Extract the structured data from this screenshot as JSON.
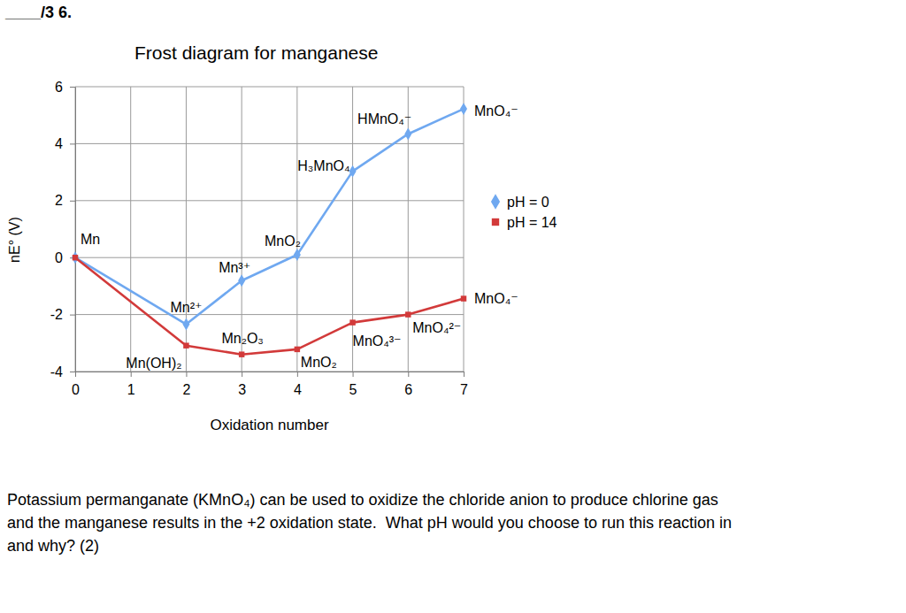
{
  "header": "____/3 6.",
  "question": [
    "Potassium permanganate (KMnO₄) can be used to oxidize the chloride anion to produce chlorine gas",
    "and the manganese results in the +2 oxidation state.  What pH would you choose to run this reaction in",
    "and why? (2)"
  ],
  "chart_data": {
    "type": "line",
    "title": "Frost diagram for manganese",
    "x_label": "Oxidation number",
    "y_label": "nE° (V)",
    "xlim": [
      0,
      7
    ],
    "xticks": [
      0,
      1,
      2,
      3,
      4,
      5,
      6,
      7
    ],
    "ylim": [
      -4,
      6
    ],
    "yticks": [
      -4,
      -2,
      0,
      2,
      4,
      6
    ],
    "grid": true,
    "legend": "right",
    "series": [
      {
        "name": "pH = 0",
        "color": "#6fa8f0",
        "marker": "diamond",
        "x": [
          0,
          2,
          3,
          4,
          5,
          6,
          7
        ],
        "values": [
          0,
          -2.34,
          -0.81,
          0.1,
          3.03,
          4.34,
          5.22
        ],
        "point_labels": [
          "Mn",
          "Mn²⁺",
          "Mn³⁺",
          "MnO₂",
          "H₃MnO₄",
          "HMnO₄⁻",
          "MnO₄⁻"
        ]
      },
      {
        "name": "pH = 14",
        "color": "#d23a3a",
        "marker": "square",
        "x": [
          0,
          2,
          3,
          4,
          5,
          6,
          7
        ],
        "values": [
          0,
          -3.09,
          -3.4,
          -3.22,
          -2.28,
          -2.0,
          -1.44
        ],
        "point_labels": [
          null,
          "Mn(OH)₂",
          "Mn₂O₃",
          "MnO₂",
          "MnO₄³⁻",
          "MnO₄²⁻",
          "MnO₄⁻"
        ]
      }
    ]
  }
}
